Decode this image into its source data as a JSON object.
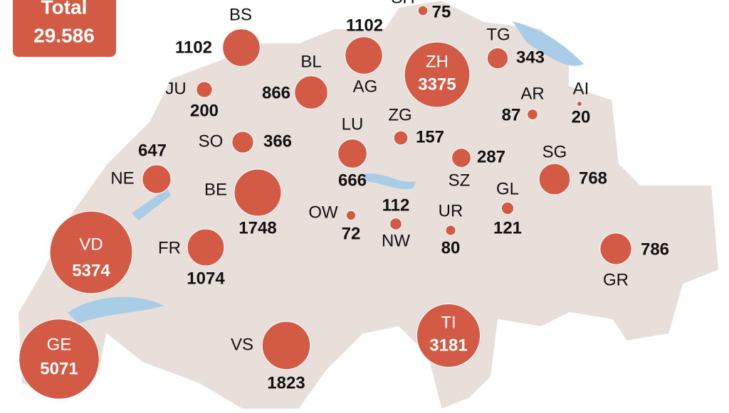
{
  "total": {
    "label": "Total",
    "value": "29.586"
  },
  "cantons": [
    {
      "code": "BS",
      "value": 1102
    },
    {
      "code": "BL",
      "value": 866
    },
    {
      "code": "AG",
      "value": 1102
    },
    {
      "code": "SH",
      "value": 75
    },
    {
      "code": "ZH",
      "value": 3375
    },
    {
      "code": "TG",
      "value": 343
    },
    {
      "code": "JU",
      "value": 200
    },
    {
      "code": "AR",
      "value": 87
    },
    {
      "code": "AI",
      "value": 20
    },
    {
      "code": "SO",
      "value": 366
    },
    {
      "code": "LU",
      "value": 666
    },
    {
      "code": "ZG",
      "value": 157
    },
    {
      "code": "SZ",
      "value": 287
    },
    {
      "code": "NE",
      "value": 647
    },
    {
      "code": "BE",
      "value": 1748
    },
    {
      "code": "SG",
      "value": 768
    },
    {
      "code": "OW",
      "value": 72
    },
    {
      "code": "NW",
      "value": 112
    },
    {
      "code": "UR",
      "value": 80
    },
    {
      "code": "GL",
      "value": 121
    },
    {
      "code": "GR",
      "value": 786
    },
    {
      "code": "VD",
      "value": 5374
    },
    {
      "code": "FR",
      "value": 1074
    },
    {
      "code": "GE",
      "value": 5071
    },
    {
      "code": "VS",
      "value": 1823
    },
    {
      "code": "TI",
      "value": 3181
    }
  ]
}
